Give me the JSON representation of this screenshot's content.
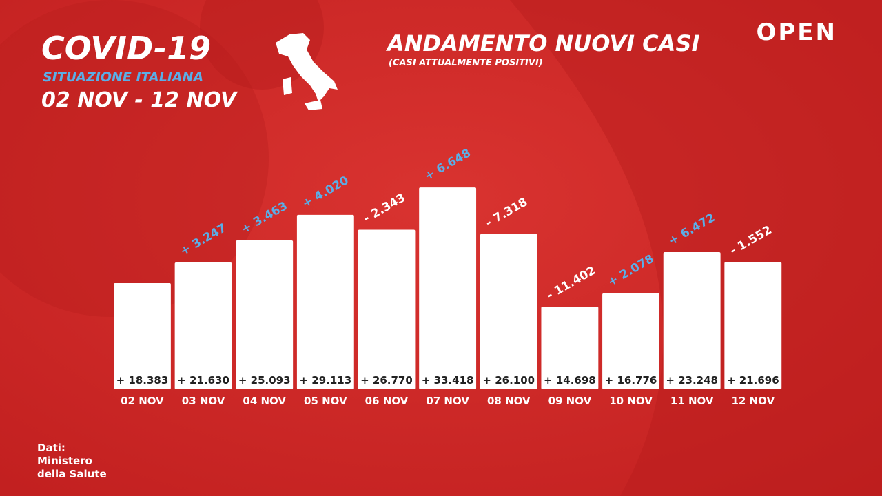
{
  "chart_data": {
    "type": "bar",
    "title": "COVID-19",
    "subtitle": "SITUAZIONE ITALIANA",
    "period": "02 NOV - 12 NOV",
    "chart_title": "ANDAMENTO NUOVI CASI",
    "chart_subtitle": "(CASI ATTUALMENTE POSITIVI)",
    "brand": "OPEN",
    "source": [
      "Dati:",
      "Ministero",
      "della Salute"
    ],
    "categories": [
      "02 NOV",
      "03 NOV",
      "04 NOV",
      "05 NOV",
      "06 NOV",
      "07 NOV",
      "08 NOV",
      "09 NOV",
      "10 NOV",
      "11 NOV",
      "12 NOV"
    ],
    "values": [
      18383,
      21630,
      25093,
      29113,
      26770,
      33418,
      26100,
      14698,
      16776,
      23248,
      21696
    ],
    "value_labels": [
      "+ 18.383",
      "+ 21.630",
      "+ 25.093",
      "+ 29.113",
      "+ 26.770",
      "+ 33.418",
      "+ 26.100",
      "+ 14.698",
      "+ 16.776",
      "+ 23.248",
      "+ 21.696"
    ],
    "changes": [
      null,
      3247,
      3463,
      4020,
      -2343,
      6648,
      -7318,
      -11402,
      2078,
      6472,
      -1552
    ],
    "change_labels": [
      null,
      "+ 3.247",
      "+ 3.463",
      "+ 4.020",
      "- 2.343",
      "+ 6.648",
      "- 7.318",
      "- 11.402",
      "+ 2.078",
      "+ 6.472",
      "- 1.552"
    ],
    "color": "#ffffff",
    "increase_color": "#5aaee8",
    "decrease_color": "#ffffff",
    "ylim": [
      1700,
      36900
    ]
  }
}
